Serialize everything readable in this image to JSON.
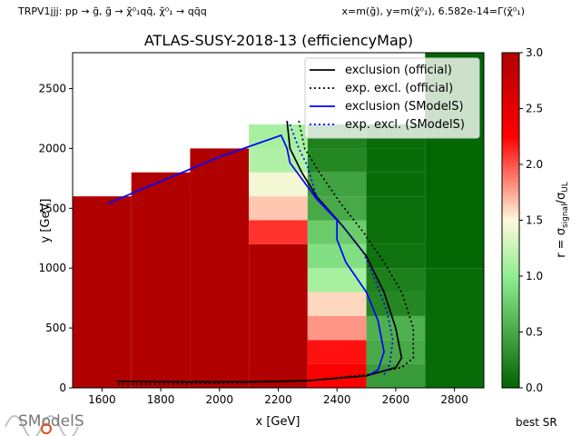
{
  "header": {
    "process": "TRPV1jjj: pp → g̃, g̃ → χ̃⁰₁qq̄, χ̃⁰₁ → qq̄q",
    "axes_def": "x=m(g̃), y=m(χ̃⁰₁), 6.582e-14=Γ(χ̃⁰₁)"
  },
  "footer": {
    "best_sr": "best SR",
    "logo": "SModelS"
  },
  "colorbar": {
    "label": "r = σsignal/σUL",
    "ticks": [
      "0.0",
      "0.5",
      "1.0",
      "1.5",
      "2.0",
      "2.5",
      "3.0"
    ],
    "range": [
      0,
      3
    ],
    "colors": [
      "#006400",
      "#90ee90",
      "#fff8dc",
      "#ff0000",
      "#b00000"
    ]
  },
  "chart_data": {
    "type": "heatmap",
    "title": "ATLAS-SUSY-2018-13 (efficiencyMap)",
    "xlabel": "x [GeV]",
    "ylabel": "y [GeV]",
    "xlim": [
      1500,
      2900
    ],
    "ylim": [
      0,
      2800
    ],
    "xticks": [
      "1600",
      "1800",
      "2000",
      "2200",
      "2400",
      "2600",
      "2800"
    ],
    "yticks": [
      "0",
      "500",
      "1000",
      "1500",
      "2000",
      "2500"
    ],
    "cells": [
      {
        "x0": 1500,
        "x1": 1700,
        "y0": 0,
        "y1": 1600,
        "r": 3.0
      },
      {
        "x0": 1700,
        "x1": 1900,
        "y0": 0,
        "y1": 1800,
        "r": 3.0
      },
      {
        "x0": 1900,
        "x1": 2100,
        "y0": 0,
        "y1": 2000,
        "r": 3.0
      },
      {
        "x0": 2100,
        "x1": 2300,
        "y0": 0,
        "y1": 1200,
        "r": 3.0
      },
      {
        "x0": 2100,
        "x1": 2300,
        "y0": 1200,
        "y1": 1400,
        "r": 2.1
      },
      {
        "x0": 2100,
        "x1": 2300,
        "y0": 1400,
        "y1": 1600,
        "r": 1.65
      },
      {
        "x0": 2100,
        "x1": 2300,
        "y0": 1600,
        "y1": 1800,
        "r": 1.45
      },
      {
        "x0": 2100,
        "x1": 2300,
        "y0": 1800,
        "y1": 2000,
        "r": 1.15
      },
      {
        "x0": 2100,
        "x1": 2300,
        "y0": 2000,
        "y1": 2200,
        "r": 1.1
      },
      {
        "x0": 2300,
        "x1": 2500,
        "y0": 0,
        "y1": 200,
        "r": 2.3
      },
      {
        "x0": 2300,
        "x1": 2500,
        "y0": 200,
        "y1": 400,
        "r": 2.2
      },
      {
        "x0": 2300,
        "x1": 2500,
        "y0": 400,
        "y1": 600,
        "r": 1.8
      },
      {
        "x0": 2300,
        "x1": 2500,
        "y0": 600,
        "y1": 800,
        "r": 1.6
      },
      {
        "x0": 2300,
        "x1": 2500,
        "y0": 800,
        "y1": 1000,
        "r": 1.1
      },
      {
        "x0": 2300,
        "x1": 2500,
        "y0": 1000,
        "y1": 1200,
        "r": 0.9
      },
      {
        "x0": 2300,
        "x1": 2500,
        "y0": 1200,
        "y1": 1400,
        "r": 0.75
      },
      {
        "x0": 2300,
        "x1": 2500,
        "y0": 1400,
        "y1": 1600,
        "r": 0.5
      },
      {
        "x0": 2300,
        "x1": 2500,
        "y0": 1600,
        "y1": 1800,
        "r": 0.45
      },
      {
        "x0": 2300,
        "x1": 2500,
        "y0": 1800,
        "y1": 2000,
        "r": 0.25
      },
      {
        "x0": 2300,
        "x1": 2500,
        "y0": 2000,
        "y1": 2200,
        "r": 0.2
      },
      {
        "x0": 2500,
        "x1": 2700,
        "y0": 0,
        "y1": 200,
        "r": 0.4
      },
      {
        "x0": 2500,
        "x1": 2700,
        "y0": 200,
        "y1": 400,
        "r": 0.5
      },
      {
        "x0": 2500,
        "x1": 2700,
        "y0": 400,
        "y1": 600,
        "r": 0.55
      },
      {
        "x0": 2500,
        "x1": 2700,
        "y0": 600,
        "y1": 800,
        "r": 0.25
      },
      {
        "x0": 2500,
        "x1": 2700,
        "y0": 800,
        "y1": 1000,
        "r": 0.2
      },
      {
        "x0": 2500,
        "x1": 2700,
        "y0": 1000,
        "y1": 1200,
        "r": 0.1
      },
      {
        "x0": 2500,
        "x1": 2700,
        "y0": 1200,
        "y1": 1400,
        "r": 0.08
      },
      {
        "x0": 2500,
        "x1": 2700,
        "y0": 1400,
        "y1": 1600,
        "r": 0.08
      },
      {
        "x0": 2500,
        "x1": 2700,
        "y0": 1600,
        "y1": 1800,
        "r": 0.06
      },
      {
        "x0": 2500,
        "x1": 2700,
        "y0": 1800,
        "y1": 2000,
        "r": 0.06
      },
      {
        "x0": 2500,
        "x1": 2700,
        "y0": 2000,
        "y1": 2200,
        "r": 0.05
      },
      {
        "x0": 2700,
        "x1": 2900,
        "y0": 0,
        "y1": 1000,
        "r": 0.05
      },
      {
        "x0": 2700,
        "x1": 2900,
        "y0": 1000,
        "y1": 2200,
        "r": 0.02
      },
      {
        "x0": 2700,
        "x1": 2900,
        "y0": 2200,
        "y1": 2800,
        "r": 0.0
      }
    ],
    "series": [
      {
        "name": "exclusion (official)",
        "color": "#000000",
        "dash": "",
        "points": [
          [
            2230,
            2230
          ],
          [
            2240,
            2000
          ],
          [
            2280,
            1800
          ],
          [
            2330,
            1600
          ],
          [
            2420,
            1350
          ],
          [
            2500,
            1100
          ],
          [
            2560,
            800
          ],
          [
            2600,
            500
          ],
          [
            2620,
            250
          ],
          [
            2600,
            170
          ],
          [
            2500,
            100
          ],
          [
            2300,
            60
          ],
          [
            2100,
            50
          ],
          [
            1900,
            50
          ],
          [
            1650,
            55
          ]
        ]
      },
      {
        "name": "exp. excl. (official)",
        "color": "#000000",
        "dash": "2,3",
        "points": [
          [
            2270,
            2230
          ],
          [
            2290,
            2000
          ],
          [
            2340,
            1800
          ],
          [
            2410,
            1550
          ],
          [
            2490,
            1300
          ],
          [
            2560,
            1050
          ],
          [
            2620,
            800
          ],
          [
            2660,
            500
          ],
          [
            2660,
            250
          ],
          [
            2620,
            170
          ],
          [
            2500,
            110
          ],
          [
            2300,
            60
          ],
          [
            2100,
            45
          ],
          [
            1900,
            35
          ],
          [
            1650,
            30
          ]
        ]
      },
      {
        "name": "exclusion (SModelS)",
        "color": "#0000ff",
        "dash": "",
        "points": [
          [
            1620,
            1540
          ],
          [
            2000,
            1930
          ],
          [
            2210,
            2110
          ],
          [
            2230,
            2000
          ],
          [
            2240,
            1880
          ],
          [
            2330,
            1580
          ],
          [
            2400,
            1400
          ],
          [
            2400,
            1240
          ],
          [
            2430,
            1050
          ],
          [
            2500,
            800
          ],
          [
            2540,
            560
          ],
          [
            2560,
            300
          ],
          [
            2540,
            150
          ],
          [
            2510,
            110
          ]
        ]
      },
      {
        "name": "exp. excl. (SModelS)",
        "color": "#0000ff",
        "dash": "2,3",
        "points": [
          [
            2240,
            2200
          ],
          [
            2270,
            2000
          ],
          [
            2300,
            1850
          ],
          [
            2330,
            1600
          ],
          [
            2420,
            1350
          ],
          [
            2490,
            1130
          ],
          [
            2530,
            900
          ],
          [
            2570,
            640
          ],
          [
            2590,
            400
          ],
          [
            2580,
            200
          ],
          [
            2560,
            110
          ]
        ]
      }
    ],
    "legend_position": "top-right"
  }
}
